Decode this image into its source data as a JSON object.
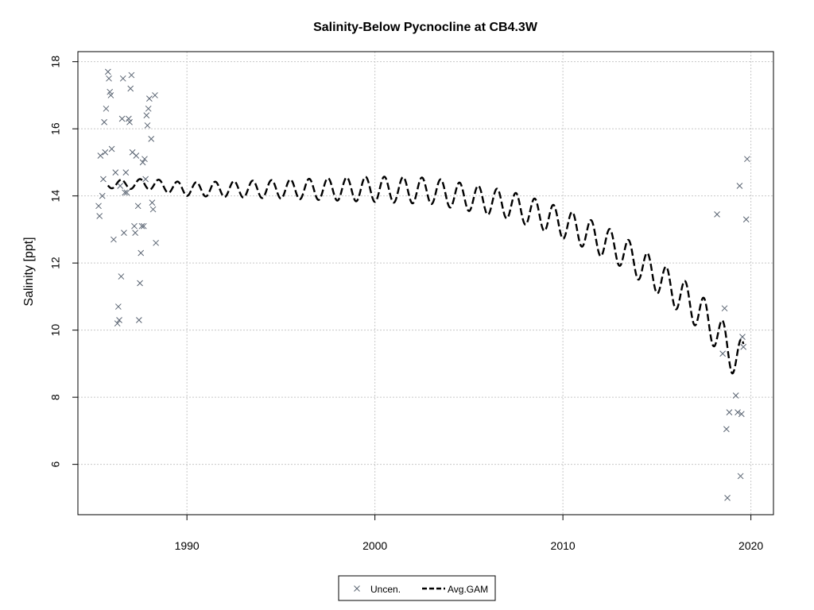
{
  "chart_data": {
    "type": "scatter",
    "title": "Salinity-Below Pycnocline at CB4.3W",
    "xlabel": "",
    "ylabel": "Salinity [ppt]",
    "xlim": [
      1984.2,
      2021.2
    ],
    "ylim": [
      4.5,
      18.3
    ],
    "x_ticks": [
      1990,
      2000,
      2010,
      2020
    ],
    "y_ticks": [
      6,
      8,
      10,
      12,
      14,
      16,
      18
    ],
    "grid": true,
    "legend_position": "bottom-center",
    "colors": {
      "points": "#5a6472",
      "line": "#000000",
      "grid": "#c8c8c8",
      "axis": "#000000"
    },
    "series": [
      {
        "name": "Uncen.",
        "marker": "x",
        "points": [
          [
            1985.3,
            13.7
          ],
          [
            1985.35,
            13.4
          ],
          [
            1985.4,
            15.2
          ],
          [
            1985.5,
            14.0
          ],
          [
            1985.55,
            14.5
          ],
          [
            1985.6,
            16.2
          ],
          [
            1985.65,
            15.3
          ],
          [
            1985.7,
            16.6
          ],
          [
            1985.8,
            17.7
          ],
          [
            1985.85,
            17.5
          ],
          [
            1985.9,
            17.1
          ],
          [
            1985.95,
            17.0
          ],
          [
            1986.0,
            15.4
          ],
          [
            1986.1,
            12.7
          ],
          [
            1986.2,
            14.7
          ],
          [
            1986.3,
            10.2
          ],
          [
            1986.35,
            10.7
          ],
          [
            1986.4,
            10.3
          ],
          [
            1986.45,
            14.3
          ],
          [
            1986.5,
            11.6
          ],
          [
            1986.55,
            16.3
          ],
          [
            1986.6,
            17.5
          ],
          [
            1986.65,
            12.9
          ],
          [
            1986.7,
            14.1
          ],
          [
            1986.75,
            14.7
          ],
          [
            1986.8,
            14.1
          ],
          [
            1986.9,
            16.3
          ],
          [
            1986.95,
            16.2
          ],
          [
            1987.0,
            17.2
          ],
          [
            1987.05,
            17.6
          ],
          [
            1987.1,
            15.3
          ],
          [
            1987.2,
            13.1
          ],
          [
            1987.25,
            12.9
          ],
          [
            1987.3,
            15.2
          ],
          [
            1987.4,
            13.7
          ],
          [
            1987.45,
            10.3
          ],
          [
            1987.5,
            11.4
          ],
          [
            1987.55,
            12.3
          ],
          [
            1987.6,
            13.1
          ],
          [
            1987.65,
            15.0
          ],
          [
            1987.7,
            13.1
          ],
          [
            1987.75,
            15.1
          ],
          [
            1987.8,
            14.5
          ],
          [
            1987.85,
            16.4
          ],
          [
            1987.9,
            16.1
          ],
          [
            1987.95,
            16.6
          ],
          [
            1988.0,
            16.9
          ],
          [
            1988.1,
            15.7
          ],
          [
            1988.15,
            13.8
          ],
          [
            1988.2,
            13.6
          ],
          [
            1988.3,
            17.0
          ],
          [
            1988.35,
            12.6
          ],
          [
            2018.2,
            13.45
          ],
          [
            2018.5,
            9.3
          ],
          [
            2018.6,
            10.65
          ],
          [
            2018.7,
            7.05
          ],
          [
            2018.75,
            5.0
          ],
          [
            2018.85,
            7.55
          ],
          [
            2019.2,
            8.05
          ],
          [
            2019.3,
            7.55
          ],
          [
            2019.4,
            14.3
          ],
          [
            2019.45,
            5.65
          ],
          [
            2019.5,
            7.5
          ],
          [
            2019.55,
            9.8
          ],
          [
            2019.6,
            9.5
          ],
          [
            2019.75,
            13.3
          ],
          [
            2019.8,
            15.1
          ]
        ]
      },
      {
        "name": "Avg.GAM",
        "style": "dashed-line",
        "start_year": 1985.8,
        "end_year": 2019.6,
        "trend_knots": [
          [
            1985.8,
            14.35
          ],
          [
            1988.0,
            14.35
          ],
          [
            1990.0,
            14.2
          ],
          [
            1995.0,
            14.2
          ],
          [
            2000.0,
            14.2
          ],
          [
            2003.0,
            14.15
          ],
          [
            2005.0,
            13.95
          ],
          [
            2007.0,
            13.75
          ],
          [
            2009.0,
            13.4
          ],
          [
            2011.0,
            12.95
          ],
          [
            2013.0,
            12.4
          ],
          [
            2015.0,
            11.6
          ],
          [
            2017.0,
            10.7
          ],
          [
            2018.0,
            10.1
          ],
          [
            2019.0,
            9.3
          ],
          [
            2019.6,
            9.1
          ]
        ],
        "amplitude_knots": [
          [
            1985.8,
            0.12
          ],
          [
            1990.0,
            0.2
          ],
          [
            1995.0,
            0.28
          ],
          [
            2000.0,
            0.38
          ],
          [
            2005.0,
            0.4
          ],
          [
            2010.0,
            0.45
          ],
          [
            2015.0,
            0.5
          ],
          [
            2017.0,
            0.55
          ],
          [
            2019.6,
            0.6
          ]
        ]
      }
    ]
  }
}
